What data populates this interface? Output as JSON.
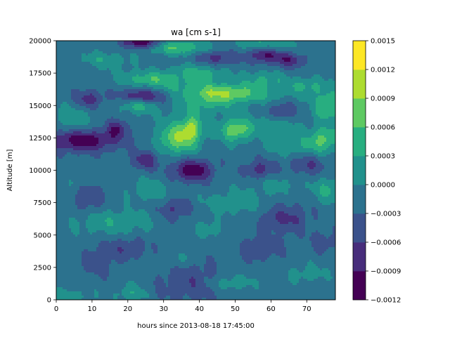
{
  "chart_data": {
    "type": "heatmap",
    "title": "wa [cm s-1]",
    "xlabel": "hours since 2013-08-18 17:45:00",
    "ylabel": "Altitude [m]",
    "xlim": [
      0,
      78
    ],
    "ylim": [
      0,
      20000
    ],
    "x_ticks": [
      0,
      10,
      20,
      30,
      40,
      50,
      60,
      70
    ],
    "y_ticks": [
      0,
      2500,
      5000,
      7500,
      10000,
      12500,
      15000,
      17500,
      20000
    ],
    "x_tick_labels": [
      "0",
      "10",
      "20",
      "30",
      "40",
      "50",
      "60",
      "70"
    ],
    "y_tick_labels": [
      "0",
      "2500",
      "5000",
      "7500",
      "10000",
      "12500",
      "15000",
      "17500",
      "20000"
    ],
    "colorbar": {
      "levels": [
        -0.0012,
        -0.0009,
        -0.0006,
        -0.0003,
        0.0,
        0.0003,
        0.0006,
        0.0009,
        0.0012,
        0.0015
      ],
      "tick_labels": [
        "−0.0012",
        "−0.0009",
        "−0.0006",
        "−0.0003",
        "0.0000",
        "0.0003",
        "0.0006",
        "0.0009",
        "0.0012",
        "0.0015"
      ],
      "colors": [
        "#440154",
        "#472d7b",
        "#3b528b",
        "#2c728e",
        "#21918c",
        "#28ae80",
        "#5ec962",
        "#addc30",
        "#fde725"
      ]
    },
    "grid": false,
    "background_level": -0.00015,
    "features": [
      {
        "x": 48,
        "y": 16000,
        "sx": 9,
        "sy": 500,
        "v": 0.0009,
        "theta": 0.07
      },
      {
        "x": 23,
        "y": 15000,
        "sx": 3,
        "sy": 450,
        "v": 0.0007,
        "theta": 0.1
      },
      {
        "x": 27,
        "y": 17000,
        "sx": 6,
        "sy": 450,
        "v": 0.0007,
        "theta": 0.08
      },
      {
        "x": 40,
        "y": 17500,
        "sx": 5,
        "sy": 450,
        "v": 0.0006,
        "theta": 0.06
      },
      {
        "x": 58,
        "y": 17000,
        "sx": 4,
        "sy": 450,
        "v": 0.0005,
        "theta": 0.06
      },
      {
        "x": 70,
        "y": 16500,
        "sx": 4,
        "sy": 450,
        "v": 0.0005,
        "theta": 0.05
      },
      {
        "x": 14,
        "y": 18500,
        "sx": 5,
        "sy": 450,
        "v": 0.0004,
        "theta": 0.08
      },
      {
        "x": 34,
        "y": 19500,
        "sx": 6,
        "sy": 400,
        "v": 0.0008,
        "theta": 0.02
      },
      {
        "x": 58,
        "y": 19800,
        "sx": 5,
        "sy": 400,
        "v": 0.0005,
        "theta": 0.02
      },
      {
        "x": 76,
        "y": 15000,
        "sx": 3,
        "sy": 800,
        "v": 0.0008,
        "theta": 0.0
      },
      {
        "x": 34,
        "y": 12500,
        "sx": 4,
        "sy": 900,
        "v": 0.001,
        "theta": 0.0
      },
      {
        "x": 38,
        "y": 13300,
        "sx": 2,
        "sy": 700,
        "v": 0.0008,
        "theta": 0.0
      },
      {
        "x": 50,
        "y": 13100,
        "sx": 3,
        "sy": 600,
        "v": 0.001,
        "theta": 0.0
      },
      {
        "x": 42,
        "y": 15200,
        "sx": 6,
        "sy": 700,
        "v": 0.0005,
        "theta": 0.0
      },
      {
        "x": 75,
        "y": 12500,
        "sx": 3,
        "sy": 700,
        "v": 0.0007,
        "theta": 0.0
      },
      {
        "x": 68,
        "y": 11800,
        "sx": 6,
        "sy": 700,
        "v": 0.0004,
        "theta": 0.0
      },
      {
        "x": 60,
        "y": 13500,
        "sx": 5,
        "sy": 600,
        "v": 0.0004,
        "theta": 0.0
      },
      {
        "x": 4,
        "y": 14000,
        "sx": 4,
        "sy": 800,
        "v": 0.0004,
        "theta": 0.0
      },
      {
        "x": 26,
        "y": 8500,
        "sx": 4,
        "sy": 600,
        "v": 0.0004,
        "theta": 0.0
      },
      {
        "x": 50,
        "y": 7500,
        "sx": 6,
        "sy": 600,
        "v": 0.0004,
        "theta": 0.0
      },
      {
        "x": 76,
        "y": 8500,
        "sx": 3,
        "sy": 700,
        "v": 0.0005,
        "theta": 0.0
      },
      {
        "x": 16,
        "y": 6000,
        "sx": 8,
        "sy": 700,
        "v": 0.0004,
        "theta": 0.0
      },
      {
        "x": 43,
        "y": 5500,
        "sx": 3,
        "sy": 500,
        "v": 0.0003,
        "theta": 0.0
      },
      {
        "x": 34,
        "y": 3000,
        "sx": 3,
        "sy": 500,
        "v": 0.0003,
        "theta": 0.0
      },
      {
        "x": 49,
        "y": 1300,
        "sx": 4,
        "sy": 400,
        "v": 0.0004,
        "theta": 0.0
      },
      {
        "x": 70,
        "y": 2000,
        "sx": 4,
        "sy": 500,
        "v": 0.0003,
        "theta": 0.0
      },
      {
        "x": 21,
        "y": 500,
        "sx": 3,
        "sy": 500,
        "v": 0.0004,
        "theta": 0.0
      },
      {
        "x": 3,
        "y": 300,
        "sx": 5,
        "sy": 400,
        "v": 0.0003,
        "theta": 0.0
      },
      {
        "x": 8,
        "y": 9000,
        "sx": 4,
        "sy": 600,
        "v": 0.0002,
        "theta": 0.0
      },
      {
        "x": 60,
        "y": 9000,
        "sx": 5,
        "sy": 600,
        "v": 0.0003,
        "theta": 0.0
      },
      {
        "x": 7,
        "y": 12300,
        "sx": 7,
        "sy": 600,
        "v": -0.001,
        "theta": 0.0
      },
      {
        "x": 17,
        "y": 13200,
        "sx": 2,
        "sy": 500,
        "v": -0.0007,
        "theta": 0.0
      },
      {
        "x": 24,
        "y": 15700,
        "sx": 4,
        "sy": 400,
        "v": -0.0009,
        "theta": 0.08
      },
      {
        "x": 24,
        "y": 19900,
        "sx": 4,
        "sy": 350,
        "v": -0.0011,
        "theta": 0.0
      },
      {
        "x": 38,
        "y": 10000,
        "sx": 4,
        "sy": 600,
        "v": -0.001,
        "theta": 0.0
      },
      {
        "x": 25,
        "y": 10800,
        "sx": 2.5,
        "sy": 500,
        "v": -0.0007,
        "theta": 0.0
      },
      {
        "x": 57,
        "y": 10000,
        "sx": 3,
        "sy": 600,
        "v": -0.0006,
        "theta": 0.0
      },
      {
        "x": 9,
        "y": 8000,
        "sx": 3,
        "sy": 800,
        "v": -0.0005,
        "theta": 0.0
      },
      {
        "x": 33,
        "y": 7000,
        "sx": 3,
        "sy": 600,
        "v": -0.0005,
        "theta": 0.0
      },
      {
        "x": 64,
        "y": 6300,
        "sx": 5,
        "sy": 800,
        "v": -0.0005,
        "theta": 0.0
      },
      {
        "x": 37,
        "y": 1500,
        "sx": 6,
        "sy": 1200,
        "v": -0.0004,
        "theta": 0.0
      },
      {
        "x": 12,
        "y": 3000,
        "sx": 3,
        "sy": 800,
        "v": -0.0004,
        "theta": 0.0
      },
      {
        "x": 65,
        "y": 18500,
        "sx": 3,
        "sy": 400,
        "v": -0.0007,
        "theta": 0.05
      },
      {
        "x": 58,
        "y": 18900,
        "sx": 3,
        "sy": 400,
        "v": -0.0008,
        "theta": 0.05
      },
      {
        "x": 9,
        "y": 15500,
        "sx": 3,
        "sy": 500,
        "v": -0.0006,
        "theta": 0.0
      },
      {
        "x": 63,
        "y": 14500,
        "sx": 3,
        "sy": 500,
        "v": -0.0005,
        "theta": 0.0
      },
      {
        "x": 45,
        "y": 18700,
        "sx": 4,
        "sy": 400,
        "v": -0.0006,
        "theta": 0.05
      },
      {
        "x": 70,
        "y": 10500,
        "sx": 4,
        "sy": 600,
        "v": -0.0005,
        "theta": 0.0
      },
      {
        "x": 20,
        "y": 4000,
        "sx": 4,
        "sy": 600,
        "v": -0.0004,
        "theta": 0.0
      },
      {
        "x": 57,
        "y": 4000,
        "sx": 4,
        "sy": 700,
        "v": -0.0004,
        "theta": 0.0
      },
      {
        "x": 75,
        "y": 4500,
        "sx": 3,
        "sy": 600,
        "v": -0.0003,
        "theta": 0.0
      }
    ]
  }
}
